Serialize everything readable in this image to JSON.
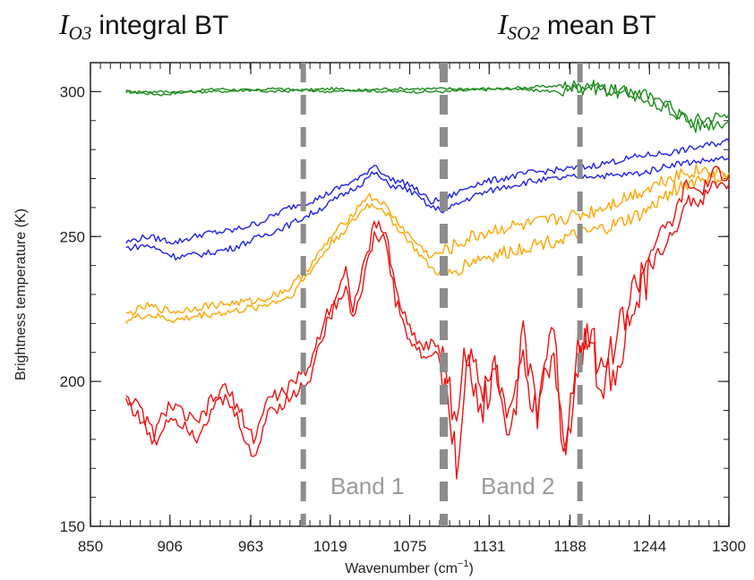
{
  "annotations": {
    "left": {
      "symbol": "I",
      "subscript": "O3",
      "text": "integral BT"
    },
    "right": {
      "symbol": "I",
      "subscript": "SO2",
      "text": "mean BT"
    },
    "band1": "Band 1",
    "band2": "Band 2"
  },
  "chart_data": {
    "type": "line",
    "title": "",
    "xlabel": "Wavenumber (cm",
    "xlabel_sup": "−1",
    "xlabel_close": ")",
    "ylabel": "Brightness temperature (K)",
    "xlim": [
      850,
      1300
    ],
    "ylim": [
      150,
      310
    ],
    "xticks": [
      850,
      906,
      963,
      1019,
      1075,
      1131,
      1188,
      1244,
      1300
    ],
    "yticks": [
      150,
      200,
      250,
      300
    ],
    "band_edges": [
      1000,
      1098,
      1100,
      1195
    ],
    "colors": {
      "green": "#1e8c1e",
      "blue": "#2222ee",
      "orange": "#ffa500",
      "red": "#ee1111",
      "band": "#8c8c8c"
    },
    "series": [
      {
        "color": "#1e8c1e",
        "values": [
          [
            875,
            300
          ],
          [
            900,
            299
          ],
          [
            940,
            301
          ],
          [
            980,
            300
          ],
          [
            1020,
            301
          ],
          [
            1060,
            300
          ],
          [
            1100,
            300
          ],
          [
            1140,
            301
          ],
          [
            1180,
            302
          ],
          [
            1200,
            302
          ],
          [
            1220,
            300
          ],
          [
            1240,
            299
          ],
          [
            1260,
            293
          ],
          [
            1275,
            290
          ],
          [
            1300,
            292
          ]
        ]
      },
      {
        "color": "#1e8c1e",
        "values": [
          [
            875,
            300
          ],
          [
            900,
            300
          ],
          [
            940,
            300
          ],
          [
            980,
            301
          ],
          [
            1020,
            300
          ],
          [
            1060,
            301
          ],
          [
            1100,
            301
          ],
          [
            1140,
            301
          ],
          [
            1180,
            300
          ],
          [
            1200,
            301
          ],
          [
            1220,
            301
          ],
          [
            1240,
            298
          ],
          [
            1260,
            295
          ],
          [
            1275,
            288
          ],
          [
            1300,
            290
          ]
        ]
      },
      {
        "color": "#2222ee",
        "values": [
          [
            875,
            248
          ],
          [
            890,
            250
          ],
          [
            910,
            248
          ],
          [
            930,
            251
          ],
          [
            950,
            252
          ],
          [
            970,
            255
          ],
          [
            990,
            260
          ],
          [
            1010,
            263
          ],
          [
            1030,
            268
          ],
          [
            1040,
            270
          ],
          [
            1050,
            275
          ],
          [
            1060,
            270
          ],
          [
            1075,
            268
          ],
          [
            1090,
            262
          ],
          [
            1100,
            263
          ],
          [
            1120,
            268
          ],
          [
            1140,
            270
          ],
          [
            1160,
            272
          ],
          [
            1180,
            273
          ],
          [
            1200,
            274
          ],
          [
            1220,
            276
          ],
          [
            1240,
            278
          ],
          [
            1260,
            279
          ],
          [
            1280,
            281
          ],
          [
            1300,
            283
          ]
        ]
      },
      {
        "color": "#2222ee",
        "values": [
          [
            875,
            246
          ],
          [
            890,
            247
          ],
          [
            910,
            243
          ],
          [
            930,
            244
          ],
          [
            950,
            246
          ],
          [
            970,
            250
          ],
          [
            990,
            254
          ],
          [
            1010,
            259
          ],
          [
            1030,
            265
          ],
          [
            1040,
            268
          ],
          [
            1050,
            272
          ],
          [
            1060,
            268
          ],
          [
            1075,
            266
          ],
          [
            1090,
            260
          ],
          [
            1100,
            259
          ],
          [
            1120,
            264
          ],
          [
            1140,
            267
          ],
          [
            1160,
            269
          ],
          [
            1180,
            270
          ],
          [
            1200,
            271
          ],
          [
            1220,
            271
          ],
          [
            1240,
            272
          ],
          [
            1260,
            275
          ],
          [
            1280,
            276
          ],
          [
            1300,
            277
          ]
        ]
      },
      {
        "color": "#ffa500",
        "values": [
          [
            875,
            223
          ],
          [
            890,
            226
          ],
          [
            910,
            224
          ],
          [
            930,
            226
          ],
          [
            950,
            227
          ],
          [
            970,
            228
          ],
          [
            990,
            232
          ],
          [
            1005,
            240
          ],
          [
            1020,
            250
          ],
          [
            1035,
            258
          ],
          [
            1045,
            264
          ],
          [
            1055,
            262
          ],
          [
            1065,
            256
          ],
          [
            1075,
            250
          ],
          [
            1090,
            243
          ],
          [
            1100,
            245
          ],
          [
            1120,
            250
          ],
          [
            1140,
            253
          ],
          [
            1160,
            254
          ],
          [
            1180,
            256
          ],
          [
            1200,
            258
          ],
          [
            1220,
            262
          ],
          [
            1240,
            266
          ],
          [
            1260,
            271
          ],
          [
            1280,
            273
          ],
          [
            1300,
            272
          ]
        ]
      },
      {
        "color": "#ffa500",
        "values": [
          [
            875,
            221
          ],
          [
            890,
            223
          ],
          [
            910,
            221
          ],
          [
            930,
            223
          ],
          [
            950,
            224
          ],
          [
            970,
            226
          ],
          [
            990,
            229
          ],
          [
            1005,
            238
          ],
          [
            1020,
            248
          ],
          [
            1035,
            255
          ],
          [
            1045,
            261
          ],
          [
            1055,
            260
          ],
          [
            1065,
            254
          ],
          [
            1075,
            248
          ],
          [
            1090,
            239
          ],
          [
            1100,
            236
          ],
          [
            1120,
            242
          ],
          [
            1140,
            244
          ],
          [
            1160,
            247
          ],
          [
            1180,
            249
          ],
          [
            1200,
            251
          ],
          [
            1220,
            254
          ],
          [
            1240,
            258
          ],
          [
            1260,
            266
          ],
          [
            1280,
            270
          ],
          [
            1300,
            270
          ]
        ]
      },
      {
        "color": "#ee1111",
        "values": [
          [
            875,
            196
          ],
          [
            885,
            190
          ],
          [
            895,
            182
          ],
          [
            905,
            192
          ],
          [
            915,
            189
          ],
          [
            925,
            185
          ],
          [
            935,
            193
          ],
          [
            945,
            198
          ],
          [
            955,
            190
          ],
          [
            965,
            180
          ],
          [
            975,
            194
          ],
          [
            985,
            196
          ],
          [
            995,
            200
          ],
          [
            1005,
            206
          ],
          [
            1015,
            222
          ],
          [
            1025,
            232
          ],
          [
            1030,
            238
          ],
          [
            1035,
            226
          ],
          [
            1040,
            234
          ],
          [
            1050,
            254
          ],
          [
            1058,
            252
          ],
          [
            1065,
            232
          ],
          [
            1075,
            218
          ],
          [
            1085,
            212
          ],
          [
            1095,
            214
          ],
          [
            1100,
            202
          ],
          [
            1108,
            188
          ],
          [
            1115,
            212
          ],
          [
            1125,
            196
          ],
          [
            1135,
            210
          ],
          [
            1145,
            187
          ],
          [
            1155,
            214
          ],
          [
            1165,
            192
          ],
          [
            1175,
            220
          ],
          [
            1185,
            178
          ],
          [
            1192,
            210
          ],
          [
            1200,
            220
          ],
          [
            1210,
            204
          ],
          [
            1220,
            214
          ],
          [
            1230,
            228
          ],
          [
            1240,
            240
          ],
          [
            1250,
            250
          ],
          [
            1260,
            255
          ],
          [
            1270,
            268
          ],
          [
            1280,
            265
          ],
          [
            1290,
            272
          ],
          [
            1300,
            271
          ]
        ]
      },
      {
        "color": "#ee1111",
        "values": [
          [
            875,
            194
          ],
          [
            885,
            187
          ],
          [
            895,
            178
          ],
          [
            905,
            188
          ],
          [
            915,
            186
          ],
          [
            925,
            181
          ],
          [
            935,
            190
          ],
          [
            945,
            194
          ],
          [
            955,
            186
          ],
          [
            965,
            172
          ],
          [
            975,
            190
          ],
          [
            985,
            192
          ],
          [
            995,
            196
          ],
          [
            1005,
            202
          ],
          [
            1015,
            218
          ],
          [
            1025,
            229
          ],
          [
            1030,
            233
          ],
          [
            1035,
            222
          ],
          [
            1040,
            230
          ],
          [
            1050,
            250
          ],
          [
            1058,
            249
          ],
          [
            1065,
            228
          ],
          [
            1075,
            214
          ],
          [
            1085,
            208
          ],
          [
            1095,
            210
          ],
          [
            1100,
            196
          ],
          [
            1108,
            172
          ],
          [
            1115,
            205
          ],
          [
            1125,
            190
          ],
          [
            1135,
            204
          ],
          [
            1145,
            182
          ],
          [
            1155,
            206
          ],
          [
            1165,
            186
          ],
          [
            1175,
            212
          ],
          [
            1185,
            172
          ],
          [
            1192,
            205
          ],
          [
            1200,
            215
          ],
          [
            1210,
            198
          ],
          [
            1220,
            205
          ],
          [
            1230,
            220
          ],
          [
            1240,
            232
          ],
          [
            1250,
            244
          ],
          [
            1260,
            250
          ],
          [
            1270,
            262
          ],
          [
            1280,
            262
          ],
          [
            1290,
            268
          ],
          [
            1300,
            268
          ]
        ]
      }
    ]
  }
}
